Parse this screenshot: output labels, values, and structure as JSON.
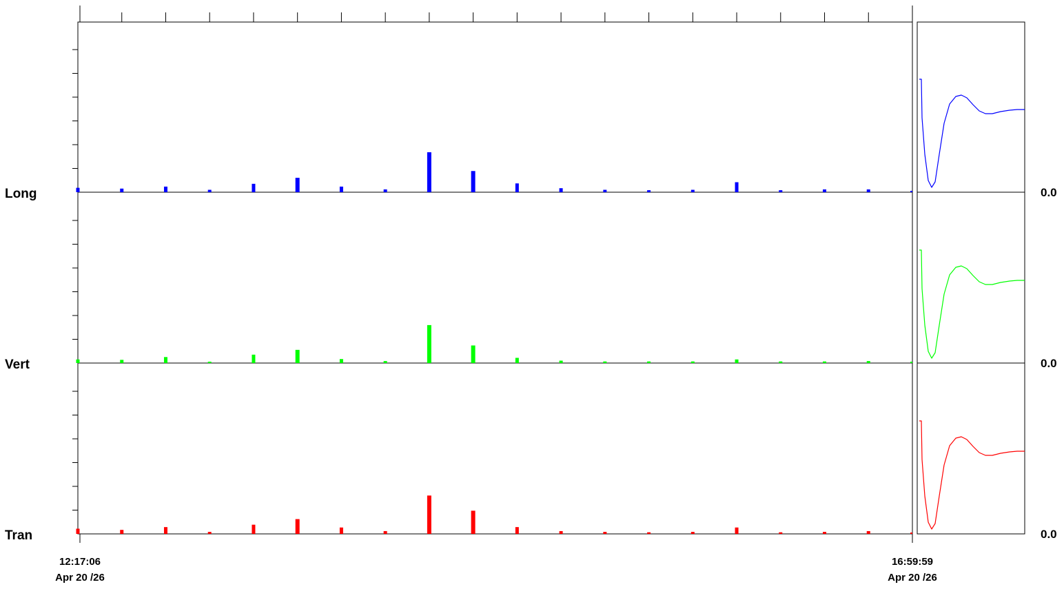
{
  "chart_data": {
    "type": "bar",
    "xaxis": {
      "start": {
        "time": "12:17:06",
        "date": "Apr 20 /26"
      },
      "end": {
        "time": "16:59:59",
        "date": "Apr 20 /26"
      }
    },
    "panels": [
      {
        "name": "Long",
        "color": "#0000ff",
        "right_value": "0.0",
        "values": [
          0.11,
          0.09,
          0.14,
          0.06,
          0.21,
          0.36,
          0.14,
          0.07,
          1.0,
          0.53,
          0.22,
          0.1,
          0.06,
          0.05,
          0.06,
          0.25,
          0.05,
          0.07,
          0.07,
          0.03
        ]
      },
      {
        "name": "Vert",
        "color": "#00ff00",
        "right_value": "0.0",
        "values": [
          0.09,
          0.08,
          0.15,
          0.03,
          0.21,
          0.33,
          0.1,
          0.05,
          0.95,
          0.44,
          0.13,
          0.06,
          0.04,
          0.04,
          0.04,
          0.09,
          0.04,
          0.04,
          0.05,
          0.02
        ]
      },
      {
        "name": "Tran",
        "color": "#ff0000",
        "right_value": "0.0",
        "values": [
          0.13,
          0.1,
          0.17,
          0.05,
          0.23,
          0.37,
          0.16,
          0.07,
          0.96,
          0.58,
          0.17,
          0.07,
          0.05,
          0.04,
          0.05,
          0.16,
          0.04,
          0.05,
          0.07,
          0.02
        ]
      }
    ],
    "bars_per_panel": 20,
    "grid": false,
    "legend": "none"
  }
}
